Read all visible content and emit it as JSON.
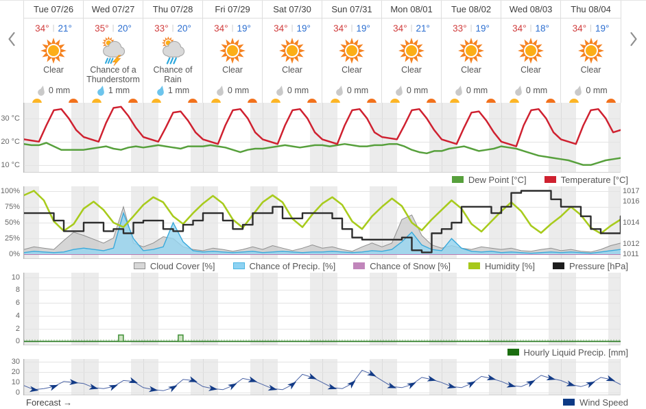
{
  "icons": {
    "prev": "chevron-left-icon",
    "next": "chevron-right-icon",
    "sunrise": "sunrise-icon",
    "sunset": "sunset-icon",
    "clear": "clear-sun-icon",
    "thunderstorm": "thunderstorm-icon",
    "rain": "chance-of-rain-icon",
    "droplet": "precip-droplet-icon"
  },
  "strip": {
    "temp_separator": "|",
    "days": [
      {
        "date": "Tue 07/26",
        "high": "34°",
        "low": "21°",
        "icon": "clear",
        "condition": "Clear",
        "precip": "0 mm",
        "precip_icon": "droplet-gray"
      },
      {
        "date": "Wed 07/27",
        "high": "35°",
        "low": "20°",
        "icon": "thunderstorm",
        "condition": "Chance of a Thunderstorm",
        "precip": "1 mm",
        "precip_icon": "droplet-blue"
      },
      {
        "date": "Thu 07/28",
        "high": "33°",
        "low": "20°",
        "icon": "rain",
        "condition": "Chance of Rain",
        "precip": "1 mm",
        "precip_icon": "droplet-blue"
      },
      {
        "date": "Fri 07/29",
        "high": "34°",
        "low": "19°",
        "icon": "clear",
        "condition": "Clear",
        "precip": "0 mm",
        "precip_icon": "droplet-gray"
      },
      {
        "date": "Sat 07/30",
        "high": "34°",
        "low": "19°",
        "icon": "clear",
        "condition": "Clear",
        "precip": "0 mm",
        "precip_icon": "droplet-gray"
      },
      {
        "date": "Sun 07/31",
        "high": "34°",
        "low": "19°",
        "icon": "clear",
        "condition": "Clear",
        "precip": "0 mm",
        "precip_icon": "droplet-gray"
      },
      {
        "date": "Mon 08/01",
        "high": "34°",
        "low": "21°",
        "icon": "clear",
        "condition": "Clear",
        "precip": "0 mm",
        "precip_icon": "droplet-gray"
      },
      {
        "date": "Tue 08/02",
        "high": "33°",
        "low": "19°",
        "icon": "clear",
        "condition": "Clear",
        "precip": "0 mm",
        "precip_icon": "droplet-gray"
      },
      {
        "date": "Wed 08/03",
        "high": "34°",
        "low": "18°",
        "icon": "clear",
        "condition": "Clear",
        "precip": "0 mm",
        "precip_icon": "droplet-gray"
      },
      {
        "date": "Thu 08/04",
        "high": "34°",
        "low": "19°",
        "icon": "clear",
        "condition": "Clear",
        "precip": "0 mm",
        "precip_icon": "droplet-gray"
      }
    ]
  },
  "footer": {
    "forecast_label": "Forecast →"
  },
  "chart_data": [
    {
      "name": "temperature-dew-point",
      "type": "line",
      "x_unit": "hours",
      "x_step": 3,
      "x_range": [
        0,
        240
      ],
      "days": 10,
      "ylim": [
        6.7,
        36.7
      ],
      "height": 102,
      "yticks_left": [
        {
          "v": 30,
          "label": "30 °C"
        },
        {
          "v": 20,
          "label": "20 °C"
        },
        {
          "v": 10,
          "label": "10 °C"
        }
      ],
      "series": [
        {
          "name": "Dew Point [°C]",
          "kind": "line",
          "color": "#57a03c",
          "width": 2.5,
          "values": [
            19,
            18.5,
            18.5,
            19.5,
            18,
            16.5,
            16.5,
            16.5,
            16.5,
            17,
            17.5,
            18,
            17,
            16.5,
            17.5,
            18,
            17.5,
            18,
            18.5,
            18,
            17.5,
            17,
            18,
            18,
            18,
            18.5,
            18,
            17.5,
            16.5,
            15.5,
            16.5,
            17,
            17,
            17.5,
            18,
            18.5,
            18,
            17.5,
            18,
            18.5,
            18.5,
            18,
            18.5,
            19,
            18.5,
            18,
            18,
            18.5,
            18.5,
            19,
            19,
            18,
            16.5,
            15.5,
            15,
            16,
            16,
            17,
            17.5,
            18,
            17,
            16,
            16.5,
            17,
            18,
            17.5,
            17,
            16,
            15,
            14,
            13.5,
            13,
            12.5,
            12,
            11,
            10,
            10,
            11,
            12,
            12.5,
            13
          ]
        },
        {
          "name": "Temperature [°C]",
          "kind": "line",
          "color": "#cf2130",
          "width": 2.5,
          "values": [
            21,
            20.5,
            20,
            27,
            33.5,
            34,
            30,
            25,
            22,
            21,
            20,
            28,
            34.5,
            35,
            31,
            26,
            22,
            21,
            20,
            26,
            32.5,
            33,
            29,
            24,
            21,
            20,
            19,
            27,
            33.5,
            34,
            30,
            24,
            21,
            20,
            19,
            27,
            33.5,
            34,
            30,
            24,
            21,
            20,
            19,
            27,
            33.5,
            34,
            30,
            24,
            22,
            21.5,
            21,
            27,
            33.5,
            34,
            30,
            25,
            21,
            20,
            19,
            26,
            32.5,
            33,
            29,
            24,
            20,
            19,
            18,
            27,
            33.5,
            34,
            30,
            24,
            21,
            20,
            19,
            27,
            33.5,
            34,
            30,
            24,
            25
          ]
        }
      ],
      "legend": [
        {
          "label": "Dew Point [°C]",
          "color": "#57a03c"
        },
        {
          "label": "Temperature [°C]",
          "color": "#cf2130"
        }
      ]
    },
    {
      "name": "humidity-pressure-cloud-precip",
      "type": "line",
      "x_unit": "hours",
      "x_step": 4,
      "x_range": [
        0,
        240
      ],
      "days": 10,
      "ylim": [
        -7,
        107
      ],
      "ylim_right": [
        1010.58,
        1017.42
      ],
      "height": 106,
      "yticks_left": [
        {
          "v": 100,
          "label": "100%"
        },
        {
          "v": 75,
          "label": "75%"
        },
        {
          "v": 50,
          "label": "50%"
        },
        {
          "v": 25,
          "label": "25%"
        },
        {
          "v": 0,
          "label": "0%"
        }
      ],
      "yticks_right": [
        {
          "v": 1017,
          "label": "1017"
        },
        {
          "v": 1016,
          "label": "1016"
        },
        {
          "v": 1014,
          "label": "1014"
        },
        {
          "v": 1012,
          "label": "1012"
        },
        {
          "v": 1011,
          "label": "1011"
        }
      ],
      "series": [
        {
          "name": "Cloud Cover [%]",
          "kind": "area",
          "color": "#8f8f8f",
          "fill": "rgba(204,204,204,0.8)",
          "width": 1,
          "values": [
            8,
            12,
            10,
            8,
            22,
            35,
            30,
            24,
            18,
            26,
            75,
            18,
            12,
            18,
            28,
            25,
            12,
            8,
            6,
            10,
            8,
            5,
            8,
            12,
            8,
            14,
            10,
            6,
            10,
            15,
            10,
            12,
            8,
            5,
            12,
            18,
            12,
            18,
            55,
            62,
            30,
            15,
            10,
            14,
            10,
            8,
            12,
            10,
            8,
            10,
            6,
            5,
            8,
            10,
            6,
            8,
            5,
            4,
            8,
            14,
            18
          ]
        },
        {
          "name": "Chance of Precip. [%]",
          "kind": "area",
          "color": "#39a9db",
          "fill": "rgba(150,214,241,0.8)",
          "width": 1.4,
          "values": [
            3,
            5,
            4,
            3,
            4,
            8,
            10,
            8,
            6,
            10,
            65,
            25,
            6,
            8,
            12,
            50,
            20,
            6,
            4,
            5,
            4,
            3,
            4,
            5,
            3,
            4,
            5,
            4,
            3,
            4,
            4,
            5,
            4,
            3,
            4,
            6,
            5,
            8,
            20,
            35,
            15,
            8,
            6,
            25,
            10,
            5,
            4,
            5,
            3,
            4,
            3,
            2,
            3,
            4,
            3,
            4,
            3,
            2,
            4,
            6,
            8
          ]
        },
        {
          "name": "Chance of Snow [%]",
          "kind": "area",
          "color": "#b878ae",
          "fill": "rgba(196,142,188,0.6)",
          "width": 1,
          "values": [
            0,
            0,
            0,
            0,
            0,
            0,
            0,
            0,
            0,
            0,
            0,
            0,
            0,
            0,
            0,
            0,
            0,
            0,
            0,
            0,
            0,
            0,
            0,
            0,
            0,
            0,
            0,
            0,
            0,
            0,
            0,
            0,
            0,
            0,
            0,
            0,
            0,
            0,
            0,
            0,
            0,
            0,
            0,
            0,
            0,
            0,
            0,
            0,
            0,
            0,
            0,
            0,
            0,
            0,
            0,
            0,
            0,
            0,
            0,
            0,
            0
          ]
        },
        {
          "name": "Humidity [%]",
          "kind": "line",
          "color": "#a8cb1d",
          "width": 2.6,
          "values": [
            93,
            100,
            85,
            52,
            37,
            48,
            72,
            83,
            70,
            50,
            43,
            60,
            78,
            90,
            82,
            60,
            48,
            65,
            80,
            92,
            80,
            55,
            42,
            62,
            82,
            93,
            82,
            56,
            43,
            63,
            80,
            90,
            78,
            52,
            40,
            60,
            75,
            88,
            76,
            50,
            38,
            55,
            70,
            85,
            72,
            48,
            36,
            52,
            68,
            82,
            68,
            45,
            34,
            48,
            60,
            75,
            62,
            42,
            33,
            45,
            55
          ]
        },
        {
          "name": "Pressure [hPa]",
          "kind": "step",
          "color": "#2d2d2d",
          "width": 2.4,
          "ylim": [
            1010.58,
            1017.42
          ],
          "values": [
            1014.9,
            1014.9,
            1014.9,
            1014.2,
            1013.2,
            1013.2,
            1014,
            1014,
            1013.2,
            1013.4,
            1013,
            1014,
            1014.2,
            1014.2,
            1013.4,
            1013.2,
            1013.8,
            1014.2,
            1014.9,
            1014.9,
            1014.2,
            1013.4,
            1013.8,
            1014.9,
            1014.9,
            1015.5,
            1014.4,
            1014.4,
            1014.9,
            1014.9,
            1014.9,
            1014.4,
            1013.4,
            1012.6,
            1012.4,
            1012.4,
            1012.4,
            1012.4,
            1012.6,
            1011.4,
            1011.2,
            1013,
            1013.4,
            1014,
            1015.5,
            1015.5,
            1015.5,
            1014.9,
            1015.5,
            1016.8,
            1017,
            1017,
            1017,
            1016.2,
            1015.5,
            1015.5,
            1014.6,
            1013.4,
            1013,
            1013,
            1014.6
          ]
        }
      ],
      "legend": [
        {
          "label": "Cloud Cover [%]",
          "color": "#d7d7d7",
          "border": "#8e8e8e"
        },
        {
          "label": "Chance of Precip. [%]",
          "color": "#8ed2f2",
          "border": "#49b4e2"
        },
        {
          "label": "Chance of Snow [%]",
          "color": "#c186bb"
        },
        {
          "label": "Humidity [%]",
          "color": "#a6c81b"
        },
        {
          "label": "Pressure [hPa]",
          "color": "#1d1d1d"
        }
      ]
    },
    {
      "name": "hourly-liquid-precip",
      "type": "bar",
      "x_unit": "hours",
      "x_range": [
        0,
        240
      ],
      "days": 10,
      "ylim": [
        -0.6,
        10.7
      ],
      "height": 106,
      "yticks_left": [
        {
          "v": 10,
          "label": "10"
        },
        {
          "v": 8,
          "label": "8"
        },
        {
          "v": 6,
          "label": "6"
        },
        {
          "v": 4,
          "label": "4"
        },
        {
          "v": 2,
          "label": "2"
        },
        {
          "v": 0,
          "label": "0"
        }
      ],
      "bars": [
        {
          "h": 39,
          "mm": 1
        },
        {
          "h": 63,
          "mm": 1
        }
      ],
      "bar_fill": "#cfe3c3",
      "bar_stroke": "#3f8f36",
      "baseline_color": "#2e7d27",
      "tick_color": "#57a046",
      "legend": [
        {
          "label": "Hourly Liquid Precip. [mm]",
          "color": "#1b6e10"
        }
      ]
    },
    {
      "name": "wind-speed",
      "type": "line",
      "x_unit": "hours",
      "x_step": 4,
      "x_range": [
        0,
        240
      ],
      "days": 10,
      "ylim": [
        -2.5,
        33
      ],
      "height": 53,
      "yticks_left": [
        {
          "v": 30,
          "label": "30"
        },
        {
          "v": 20,
          "label": "20"
        },
        {
          "v": 10,
          "label": "10"
        },
        {
          "v": 0,
          "label": "0"
        }
      ],
      "series": [
        {
          "name": "Wind Speed",
          "kind": "line",
          "color": "#4a63a5",
          "width": 1,
          "marker": "dart",
          "marker_color": "#123a86",
          "values": [
            7,
            3,
            4,
            6,
            11,
            10,
            9,
            5,
            4,
            6,
            12,
            11,
            5,
            3,
            2,
            5,
            13,
            12,
            6,
            4,
            3,
            7,
            14,
            12,
            8,
            4,
            3,
            8,
            18,
            15,
            10,
            5,
            4,
            9,
            22,
            18,
            12,
            6,
            5,
            8,
            15,
            13,
            10,
            6,
            5,
            9,
            16,
            14,
            11,
            7,
            6,
            10,
            17,
            14,
            12,
            8,
            6,
            9,
            15,
            13,
            8
          ]
        }
      ],
      "legend": [
        {
          "label": "Wind Speed",
          "color": "#0d3a85"
        }
      ]
    }
  ]
}
